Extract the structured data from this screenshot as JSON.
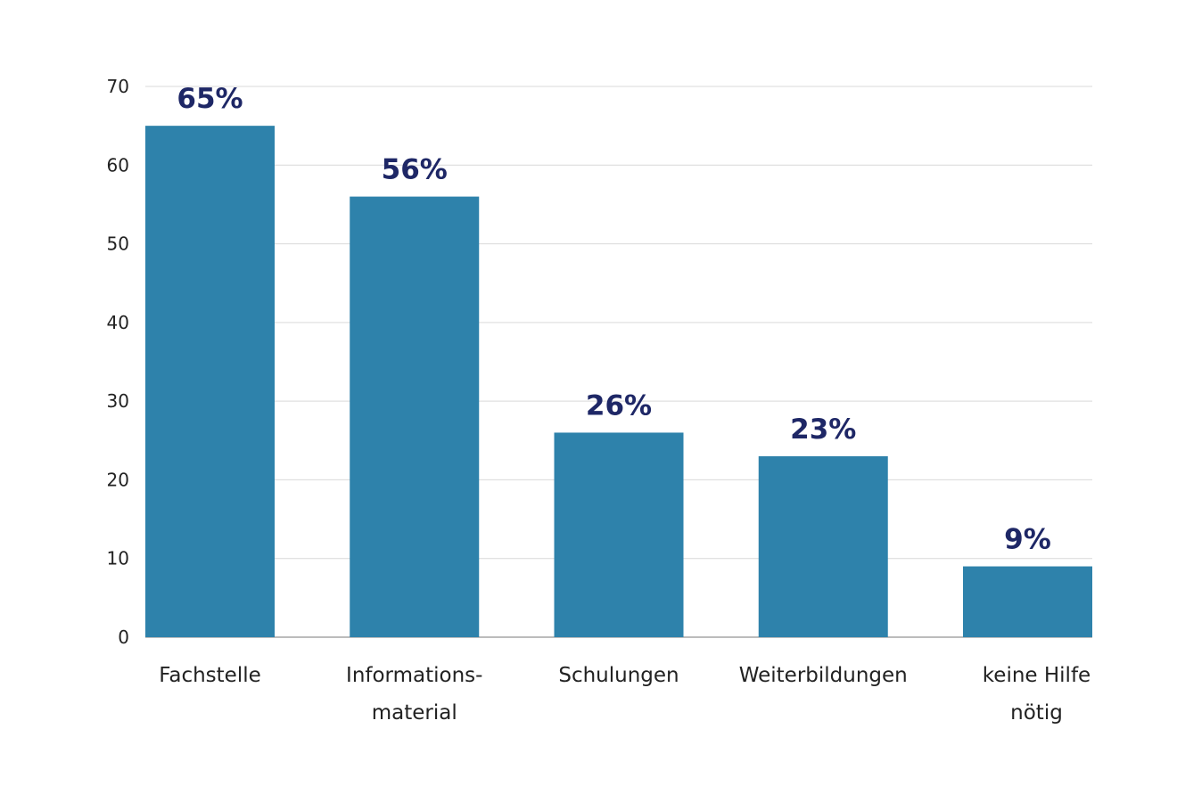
{
  "chart_data": {
    "type": "bar",
    "title": "",
    "xlabel": "",
    "ylabel": "",
    "ylim": [
      0,
      70
    ],
    "yticks": [
      0,
      10,
      20,
      30,
      40,
      50,
      60,
      70
    ],
    "grid": true,
    "categories": [
      [
        "Fachstelle"
      ],
      [
        "Informations-",
        "material"
      ],
      [
        "Schulungen"
      ],
      [
        "Weiterbildungen"
      ],
      [
        "keine Hilfe",
        "nötig"
      ]
    ],
    "values": [
      65,
      56,
      26,
      23,
      9
    ],
    "data_labels": [
      "65%",
      "56%",
      "26%",
      "23%",
      "9%"
    ],
    "colors": {
      "bar": "#2e82ab",
      "label": "#1e2766",
      "grid": "#d9d9d9",
      "axis": "#a6a6a6"
    }
  }
}
